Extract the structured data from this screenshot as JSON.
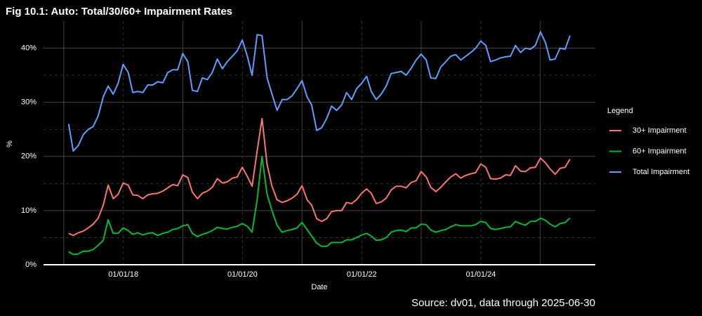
{
  "chart_data": {
    "type": "line",
    "title": "Fig 10.1: Auto: Total/30/60+ Impairment Rates",
    "x_label": "Date",
    "y_label": "%",
    "legend_title": "Legend",
    "legend_position": "right",
    "caption": "Source: dv01, data through 2025-06-30",
    "grid": true,
    "xlim": [
      "2016-08-30",
      "2025-12-02"
    ],
    "xticks": [
      {
        "value": "2018-01-01",
        "label": "01/01/18"
      },
      {
        "value": "2020-01-01",
        "label": "01/01/20"
      },
      {
        "value": "2022-01-01",
        "label": "01/01/22"
      },
      {
        "value": "2024-01-01",
        "label": "01/01/24"
      }
    ],
    "ylim": [
      0,
      45
    ],
    "yticks": [
      {
        "value": 0,
        "label": "0%"
      },
      {
        "value": 10,
        "label": "10%"
      },
      {
        "value": 20,
        "label": "20%"
      },
      {
        "value": 30,
        "label": "30%"
      },
      {
        "value": 40,
        "label": "40%"
      }
    ],
    "x": [
      "2017-01-31",
      "2017-02-28",
      "2017-03-31",
      "2017-04-30",
      "2017-05-31",
      "2017-06-30",
      "2017-07-31",
      "2017-08-31",
      "2017-09-30",
      "2017-10-31",
      "2017-11-30",
      "2017-12-31",
      "2018-01-31",
      "2018-02-28",
      "2018-03-31",
      "2018-04-30",
      "2018-05-31",
      "2018-06-30",
      "2018-07-31",
      "2018-08-31",
      "2018-09-30",
      "2018-10-31",
      "2018-11-30",
      "2018-12-31",
      "2019-01-31",
      "2019-02-28",
      "2019-03-31",
      "2019-04-30",
      "2019-05-31",
      "2019-06-30",
      "2019-07-31",
      "2019-08-31",
      "2019-09-30",
      "2019-10-31",
      "2019-11-30",
      "2019-12-31",
      "2020-01-31",
      "2020-02-29",
      "2020-03-31",
      "2020-04-30",
      "2020-05-31",
      "2020-06-30",
      "2020-07-31",
      "2020-08-31",
      "2020-09-30",
      "2020-10-31",
      "2020-11-30",
      "2020-12-31",
      "2021-01-31",
      "2021-02-28",
      "2021-03-31",
      "2021-04-30",
      "2021-05-31",
      "2021-06-30",
      "2021-07-31",
      "2021-08-31",
      "2021-09-30",
      "2021-10-31",
      "2021-11-30",
      "2021-12-31",
      "2022-01-31",
      "2022-02-28",
      "2022-03-31",
      "2022-04-30",
      "2022-05-31",
      "2022-06-30",
      "2022-07-31",
      "2022-08-31",
      "2022-09-30",
      "2022-10-31",
      "2022-11-30",
      "2022-12-31",
      "2023-01-31",
      "2023-02-28",
      "2023-03-31",
      "2023-04-30",
      "2023-05-31",
      "2023-06-30",
      "2023-07-31",
      "2023-08-31",
      "2023-09-30",
      "2023-10-31",
      "2023-11-30",
      "2023-12-31",
      "2024-01-31",
      "2024-02-29",
      "2024-03-31",
      "2024-04-30",
      "2024-05-31",
      "2024-06-30",
      "2024-07-31",
      "2024-08-31",
      "2024-09-30",
      "2024-10-31",
      "2024-11-30",
      "2024-12-31",
      "2025-01-31",
      "2025-02-28",
      "2025-03-31",
      "2025-04-30",
      "2025-05-31",
      "2025-06-30"
    ],
    "series": [
      {
        "name": "30+ Impairment",
        "color": "#f8766d",
        "values": [
          5.8,
          5.4,
          5.9,
          6.2,
          6.8,
          7.5,
          8.6,
          11,
          14.7,
          12.2,
          13,
          15.1,
          14.7,
          12.9,
          12.8,
          12.2,
          12.9,
          13.1,
          13.2,
          13.6,
          14.2,
          14.8,
          14.6,
          16.6,
          16.1,
          13.4,
          12.2,
          13.2,
          13.6,
          14.3,
          15.9,
          15.1,
          15.3,
          16,
          16.2,
          18,
          16.3,
          14.5,
          21,
          27,
          18.5,
          14.5,
          12,
          11.5,
          11.8,
          12.3,
          13,
          14.6,
          12,
          11,
          8.5,
          8,
          8.5,
          9.8,
          10,
          10,
          11.5,
          11.3,
          12,
          13.2,
          14,
          13.2,
          11.3,
          11.6,
          12.3,
          13.8,
          14.5,
          14.5,
          14.2,
          15.2,
          15.5,
          17.2,
          16.2,
          14.3,
          13.5,
          14.3,
          15.3,
          16.2,
          16.8,
          16,
          16.5,
          16.8,
          17,
          18.6,
          18,
          15.9,
          15.8,
          16,
          16.6,
          16.5,
          18.3,
          17.3,
          17.2,
          17.9,
          18,
          19.7,
          18.8,
          17.7,
          16.7,
          17.8,
          18,
          19.5
        ]
      },
      {
        "name": "60+ Impairment",
        "color": "#00ba38",
        "values": [
          2.4,
          1.9,
          2,
          2.5,
          2.5,
          2.8,
          3.6,
          4.5,
          8.3,
          5.8,
          5.8,
          6.8,
          6.3,
          5.6,
          5.9,
          5.5,
          5.8,
          5.9,
          5.4,
          5.8,
          6,
          6.5,
          6.7,
          7.2,
          7.4,
          5.8,
          5.2,
          5.6,
          5.9,
          6.3,
          6.9,
          6.7,
          6.6,
          6.9,
          7.1,
          7.6,
          7.1,
          6,
          12,
          20,
          13,
          10,
          7.3,
          6,
          6.3,
          6.5,
          6.8,
          7.8,
          6.5,
          5.3,
          4,
          3.4,
          3.4,
          4.1,
          4.1,
          4.1,
          4.6,
          4.6,
          5,
          5.5,
          5.8,
          5.3,
          4.5,
          4.6,
          5,
          6,
          6.3,
          6.4,
          6.1,
          6.8,
          6.8,
          7.5,
          7.4,
          6.4,
          6,
          6.3,
          6.5,
          7,
          7.4,
          7.2,
          7.2,
          7.2,
          7.4,
          8,
          7.8,
          6.7,
          6.5,
          6.7,
          6.9,
          7,
          8,
          7.6,
          7.3,
          8,
          8,
          8.6,
          8.2,
          7.5,
          7,
          7.6,
          7.8,
          8.6
        ]
      },
      {
        "name": "Total Impairment",
        "color": "#619cff",
        "values": [
          26,
          21,
          22,
          24,
          25,
          25.5,
          27.5,
          31,
          33,
          31.5,
          33.5,
          37,
          35.5,
          31.8,
          32,
          31.8,
          33.2,
          33.2,
          33.8,
          33.6,
          35.5,
          36,
          36,
          39,
          37.5,
          32.2,
          32,
          34.5,
          34.2,
          35.5,
          38,
          36.2,
          37.5,
          38.5,
          39.5,
          41.5,
          38.5,
          35,
          42.5,
          42.3,
          34.5,
          31.5,
          28.5,
          30.5,
          30.5,
          31.2,
          32.5,
          34,
          31,
          29.5,
          24.8,
          25.3,
          27,
          29.3,
          28.5,
          29.5,
          31.8,
          30.5,
          32.5,
          33.5,
          34.8,
          32,
          30.5,
          31.5,
          33,
          35.3,
          35.5,
          35.7,
          35,
          36.3,
          37.8,
          38.9,
          37.8,
          34.5,
          34.4,
          36.5,
          37.5,
          38.5,
          38.8,
          37.8,
          38.5,
          39.2,
          40,
          41.3,
          40.5,
          37.5,
          37.8,
          38.2,
          38.4,
          38.5,
          40.5,
          39.2,
          40,
          39.8,
          40.5,
          43,
          41,
          37.8,
          38,
          40,
          39.8,
          42.3
        ]
      }
    ]
  }
}
